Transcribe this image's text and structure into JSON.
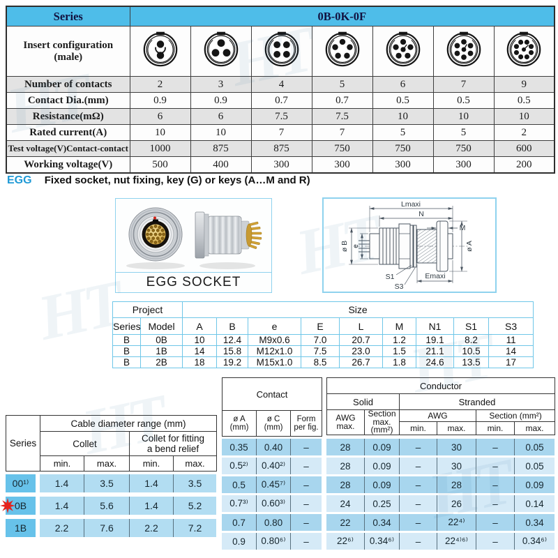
{
  "colors": {
    "header_blue": "#4ebde9",
    "row_gray": "#e3e3e3",
    "cable_series_blue": "#67c2ea",
    "cable_cell_blue": "#b2ddf2",
    "cond_row_dark": "#a8d6ee",
    "cond_row_light": "#d5eaf7",
    "egg_blue": "#1f9ad6",
    "accent_red": "#e3231d",
    "panel_border_blue": "#8ed2ee",
    "size_table_border": "#6ec6e8"
  },
  "watermark_text": "HT",
  "spec_table": {
    "series_label": "Series",
    "model_value": "0B-0K-0F",
    "insert_label": "Insert configuration\n(male)",
    "insert_icons": [
      2,
      3,
      4,
      5,
      6,
      7,
      9
    ],
    "rows": [
      {
        "label": "Number of contacts",
        "values": [
          "2",
          "3",
          "4",
          "5",
          "6",
          "7",
          "9"
        ]
      },
      {
        "label": "Contact Dia.(mm)",
        "values": [
          "0.9",
          "0.9",
          "0.7",
          "0.7",
          "0.5",
          "0.5",
          "0.5"
        ]
      },
      {
        "label": "Resistance(mΩ)",
        "values": [
          "6",
          "6",
          "7.5",
          "7.5",
          "10",
          "10",
          "10"
        ]
      },
      {
        "label": "Rated current(A)",
        "values": [
          "10",
          "10",
          "7",
          "7",
          "5",
          "5",
          "2"
        ]
      },
      {
        "label": "Test voltage(V)Contact-contact",
        "values": [
          "1000",
          "875",
          "875",
          "750",
          "750",
          "750",
          "600"
        ]
      },
      {
        "label": "Working voltage(V)",
        "values": [
          "500",
          "400",
          "300",
          "300",
          "300",
          "300",
          "200"
        ]
      }
    ]
  },
  "section_heading": {
    "code": "EGG",
    "text": "Fixed socket, nut fixing, key (G) or keys (A…M and R)"
  },
  "photo_panel": {
    "caption": "EGG SOCKET"
  },
  "drawing_labels": {
    "lmaxi": "Lmaxi",
    "n": "N",
    "m": "M",
    "phi_b": "ø B",
    "e": "e",
    "phi_a": "ø A",
    "s1": "S1",
    "s3": "S3",
    "emaxi": "Emaxi"
  },
  "size_table": {
    "project": "Project",
    "size": "Size",
    "series": "Series",
    "model": "Model",
    "dims": [
      "A",
      "B",
      "e",
      "E",
      "L",
      "M",
      "N1",
      "S1",
      "S3"
    ],
    "rows": [
      {
        "series": "B",
        "model": "0B",
        "values": [
          "10",
          "12.4",
          "M9x0.6",
          "7.0",
          "20.7",
          "1.2",
          "19.1",
          "8.2",
          "11"
        ]
      },
      {
        "series": "B",
        "model": "1B",
        "values": [
          "14",
          "15.8",
          "M12x1.0",
          "7.5",
          "23.0",
          "1.5",
          "21.1",
          "10.5",
          "14"
        ]
      },
      {
        "series": "B",
        "model": "2B",
        "values": [
          "18",
          "19.2",
          "M15x1.0",
          "8.5",
          "26.7",
          "1.8",
          "24.6",
          "13.5",
          "17"
        ]
      }
    ]
  },
  "cable_table": {
    "series": "Series",
    "title": "Cable diameter range (mm)",
    "collet": "Collet",
    "collet_bend": "Collet for fitting\na bend relief",
    "min": "min.",
    "max": "max.",
    "rows": [
      {
        "series": "00¹⁾",
        "marked": false,
        "values": [
          "1.4",
          "3.5",
          "1.4",
          "3.5"
        ]
      },
      {
        "series": "0B",
        "marked": true,
        "values": [
          "1.4",
          "5.6",
          "1.4",
          "5.2"
        ]
      },
      {
        "series": "1B",
        "marked": false,
        "values": [
          "2.2",
          "7.6",
          "2.2",
          "7.2"
        ]
      }
    ]
  },
  "conductor_table": {
    "contact": "Contact",
    "conductor": "Conductor",
    "solid": "Solid",
    "stranded": "Stranded",
    "col_phi_a": "ø A\n(mm)",
    "col_phi_c": "ø C\n(mm)",
    "col_form": "Form\nper fig.",
    "col_awg_max": "AWG\nmax.",
    "col_section_max": "Section\nmax.\n(mm²)",
    "col_awg": "AWG",
    "col_section": "Section (mm²)",
    "min": "min.",
    "max": "max.",
    "rows": [
      [
        "0.35",
        "0.40",
        "–",
        "28",
        "0.09",
        "–",
        "30",
        "–",
        "0.05"
      ],
      [
        "0.5²⁾",
        "0.40²⁾",
        "–",
        "28",
        "0.09",
        "–",
        "30",
        "–",
        "0.05"
      ],
      [
        "0.5",
        "0.45⁷⁾",
        "–",
        "28",
        "0.09",
        "–",
        "28",
        "–",
        "0.09"
      ],
      [
        "0.7³⁾",
        "0.60³⁾",
        "–",
        "24",
        "0.25",
        "–",
        "26",
        "–",
        "0.14"
      ],
      [
        "0.7",
        "0.80",
        "–",
        "22",
        "0.34",
        "–",
        "22⁴⁾",
        "–",
        "0.34"
      ],
      [
        "0.9",
        "0.80⁶⁾",
        "–",
        "22⁶⁾",
        "0.34⁶⁾",
        "–",
        "22⁴⁾⁶⁾",
        "–",
        "0.34⁶⁾"
      ]
    ]
  }
}
